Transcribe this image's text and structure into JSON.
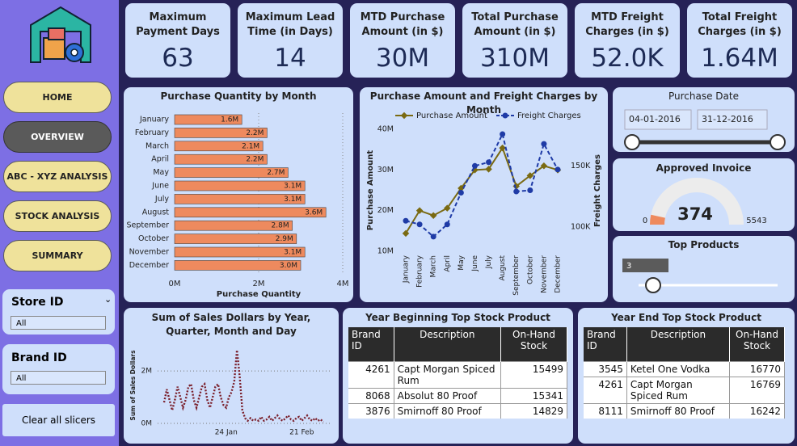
{
  "sidebar": {
    "nav": [
      "HOME",
      "OVERVIEW",
      "ABC - XYZ ANALYSIS",
      "STOCK ANALYSIS",
      "SUMMARY"
    ],
    "slicers": [
      {
        "label": "Store ID",
        "value": "All"
      },
      {
        "label": "Brand ID",
        "value": "All"
      }
    ],
    "clear_button": "Clear all slicers"
  },
  "kpis": [
    {
      "label": "Maximum Payment Days",
      "value": "63"
    },
    {
      "label": "Maximum Lead Time (in Days)",
      "value": "14"
    },
    {
      "label": "MTD Purchase Amount (in $)",
      "value": "30M"
    },
    {
      "label": "Total Purchase Amount (in $)",
      "value": "310M"
    },
    {
      "label": "MTD Freight Charges (in $)",
      "value": "52.0K"
    },
    {
      "label": "Total Freight Charges (in $)",
      "value": "1.64M"
    }
  ],
  "chart_data": [
    {
      "type": "bar",
      "orientation": "horizontal",
      "title": "Purchase Quantity by Month",
      "x_label": "Purchase Quantity",
      "categories": [
        "January",
        "February",
        "March",
        "April",
        "May",
        "June",
        "July",
        "August",
        "September",
        "October",
        "November",
        "December"
      ],
      "values": [
        1600000,
        2200000,
        2100000,
        2200000,
        2700000,
        3100000,
        3100000,
        3600000,
        2800000,
        2900000,
        3100000,
        3000000
      ],
      "value_labels": [
        "1.6M",
        "2.2M",
        "2.1M",
        "2.2M",
        "2.7M",
        "3.1M",
        "3.1M",
        "3.6M",
        "2.8M",
        "2.9M",
        "3.1M",
        "3.0M"
      ],
      "color": "#ee8a5e",
      "xlim": [
        0,
        4000000
      ],
      "xticks": [
        {
          "value": 0,
          "label": "0M"
        },
        {
          "value": 2000000,
          "label": "2M"
        },
        {
          "value": 4000000,
          "label": "4M"
        }
      ],
      "grid": true
    },
    {
      "type": "line",
      "title": "Purchase Amount and Freight Charges by Month",
      "y_label": "Purchase Amount",
      "y2_label": "Freight Charges",
      "categories": [
        "January",
        "February",
        "March",
        "April",
        "May",
        "June",
        "July",
        "August",
        "September",
        "October",
        "November",
        "December"
      ],
      "series": [
        {
          "name": "Purchase Amount",
          "color": "#7a6a12",
          "dashed": false,
          "values": [
            14400000,
            20000000,
            18800000,
            20600000,
            25500000,
            30000000,
            30200000,
            35400000,
            26000000,
            28600000,
            31000000,
            30000000
          ]
        },
        {
          "name": "Freight Charges",
          "color": "#1f3ba6",
          "dashed": true,
          "axis": "y2",
          "values": [
            105000,
            102000,
            92000,
            102000,
            128000,
            150000,
            153000,
            176000,
            129000,
            130000,
            168000,
            147000
          ]
        }
      ],
      "ylim": [
        10000000,
        40000000
      ],
      "yticks": [
        {
          "value": 10000000,
          "label": "10M"
        },
        {
          "value": 20000000,
          "label": "20M"
        },
        {
          "value": 30000000,
          "label": "30M"
        },
        {
          "value": 40000000,
          "label": "40M"
        }
      ],
      "y2lim": [
        80000,
        180000
      ],
      "y2ticks": [
        {
          "value": 100000,
          "label": "100K"
        },
        {
          "value": 150000,
          "label": "150K"
        }
      ],
      "grid": false
    },
    {
      "type": "line",
      "title": "Sum of Sales Dollars by Year, Quarter, Month and Day",
      "y_label": "Sum of Sales Dollars",
      "categories": [
        null,
        null,
        null,
        null,
        null,
        null,
        null,
        null,
        null,
        null,
        null,
        null,
        null,
        null,
        null,
        null,
        null,
        null,
        null,
        null,
        null,
        null,
        null,
        "24 Jan",
        null,
        null,
        null,
        null,
        null,
        null,
        null,
        null,
        null,
        null,
        null,
        null,
        null,
        null,
        null,
        null,
        null,
        null,
        null,
        null,
        null,
        null,
        null,
        null,
        null,
        null,
        null,
        "21 Feb",
        null,
        null,
        null,
        null,
        null,
        null,
        null,
        null
      ],
      "series": [
        {
          "name": null,
          "color": "#7a1f2b",
          "dashed": true,
          "values": [
            800000,
            1300000,
            900000,
            500000,
            900000,
            1400000,
            1000000,
            600000,
            900000,
            1400000,
            1500000,
            900000,
            600000,
            1000000,
            1400000,
            1500000,
            900000,
            600000,
            1000000,
            1400000,
            1500000,
            1000000,
            700000,
            600000,
            1000000,
            1200000,
            1600000,
            2800000,
            1800000,
            500000,
            200000,
            100000,
            200000,
            100000,
            150000,
            100000,
            250000,
            100000,
            150000,
            250000,
            100000,
            200000,
            300000,
            150000,
            100000,
            200000,
            300000,
            150000,
            100000,
            200000,
            250000,
            100000,
            200000,
            300000,
            150000,
            100000,
            200000,
            100000,
            150000,
            50000
          ]
        }
      ],
      "ylim": [
        0,
        2900000
      ],
      "yticks": [
        {
          "value": 0,
          "label": "0M"
        },
        {
          "value": 2000000,
          "label": "2M"
        }
      ],
      "grid": true
    }
  ],
  "purchase_date": {
    "title": "Purchase Date",
    "start": "04-01-2016",
    "end": "31-12-2016"
  },
  "approved_invoice": {
    "title": "Approved Invoice",
    "min": 0,
    "max": 5543,
    "value": 374
  },
  "top_products": {
    "title": "Top Products",
    "value": "3"
  },
  "tables": [
    {
      "title": "Year Beginning Top Stock Product",
      "columns": [
        "Brand ID",
        "Description",
        "On-Hand Stock"
      ],
      "rows": [
        [
          4261,
          "Capt Morgan Spiced Rum",
          15499
        ],
        [
          8068,
          "Absolut 80 Proof",
          15341
        ],
        [
          3876,
          "Smirnoff 80 Proof",
          14829
        ]
      ]
    },
    {
      "title": "Year End Top Stock Product",
      "columns": [
        "Brand ID",
        "Description",
        "On-Hand Stock"
      ],
      "rows": [
        [
          3545,
          "Ketel One Vodka",
          16770
        ],
        [
          4261,
          "Capt Morgan Spiced Rum",
          16769
        ],
        [
          8111,
          "Smirnoff 80 Proof",
          16242
        ]
      ]
    }
  ]
}
